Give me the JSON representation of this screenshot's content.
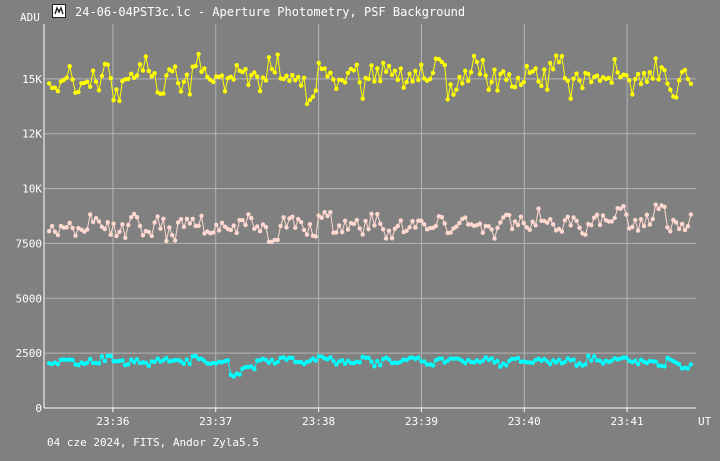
{
  "window": {
    "title": "24-06-04PST3c.lc - Aperture Photometry, PSF Background",
    "icon": "app-logo-icon"
  },
  "footer": {
    "text": "04 cze 2024, FITS, Andor Zyla5.5"
  },
  "colors": {
    "background": "#808080",
    "grid": "#b4b4b4",
    "axis": "#ffffff",
    "series_yellow": "#ffff00",
    "series_pink": "#ffd8d0",
    "series_cyan": "#00ffff"
  },
  "chart_data": {
    "type": "line",
    "ylabel": "ADU",
    "xlabel": "UT",
    "ylim": [
      0,
      17500
    ],
    "xlim_minutes": [
      35.33,
      41.67
    ],
    "x_ticks": [
      {
        "label": "23:36",
        "minute": 36
      },
      {
        "label": "23:37",
        "minute": 37
      },
      {
        "label": "23:38",
        "minute": 38
      },
      {
        "label": "23:39",
        "minute": 39
      },
      {
        "label": "23:40",
        "minute": 40
      },
      {
        "label": "23:41",
        "minute": 41
      }
    ],
    "y_ticks": [
      {
        "label": "0",
        "value": 0
      },
      {
        "label": "2500",
        "value": 2500
      },
      {
        "label": "5000",
        "value": 5000
      },
      {
        "label": "7500",
        "value": 7500
      },
      {
        "label": "10K",
        "value": 10000
      },
      {
        "label": "12K",
        "value": 12500
      },
      {
        "label": "15K",
        "value": 15000
      }
    ],
    "grid": true,
    "markers": true,
    "series": [
      {
        "color": "yellow",
        "mean": 15000,
        "spread": 600,
        "values": [
          14800,
          15600,
          14200,
          14900,
          15800,
          14100,
          15300,
          16100,
          14600,
          15200,
          14400,
          16500,
          15000,
          14300,
          15700,
          15100,
          14700,
          16300,
          14500,
          15400,
          13300,
          15900,
          14800,
          15200,
          14100,
          15600,
          16000,
          14900,
          15300,
          14600,
          15800,
          14200,
          15500,
          16200,
          14800,
          15100,
          14400,
          15700,
          14900,
          16400,
          14300,
          15000,
          15600,
          14700,
          16100,
          14500,
          15300,
          15900,
          14200,
          15400
        ]
      },
      {
        "color": "pink",
        "mean": 8300,
        "spread": 400,
        "values": [
          8000,
          8400,
          7700,
          8600,
          8200,
          7900,
          8800,
          8100,
          8500,
          7600,
          8300,
          8900,
          7800,
          8400,
          8200,
          8700,
          8000,
          7500,
          8600,
          8300,
          7900,
          8800,
          8100,
          8500,
          8200,
          8900,
          7800,
          8400,
          8700,
          8100,
          8600,
          8300,
          9000,
          8200,
          7900,
          8800,
          8500,
          8100,
          9100,
          8400,
          8700,
          8200,
          8900,
          8600,
          9300,
          8500,
          8800,
          9500,
          8400,
          8600
        ]
      },
      {
        "color": "cyan",
        "mean": 2100,
        "spread": 150,
        "values": [
          2050,
          2300,
          1950,
          2200,
          2400,
          2000,
          2150,
          1900,
          2250,
          2350,
          2100,
          2450,
          2000,
          2200,
          1100,
          1600,
          2150,
          2050,
          2300,
          2100,
          2250,
          2400,
          2000,
          2150,
          2300,
          1950,
          2250,
          2100,
          2350,
          2000,
          2200,
          2400,
          2050,
          2150,
          2300,
          1950,
          2200,
          2100,
          2350,
          2050,
          2250,
          2000,
          2400,
          2150,
          2300,
          2100,
          2050,
          1900,
          2200,
          1700
        ]
      }
    ]
  }
}
